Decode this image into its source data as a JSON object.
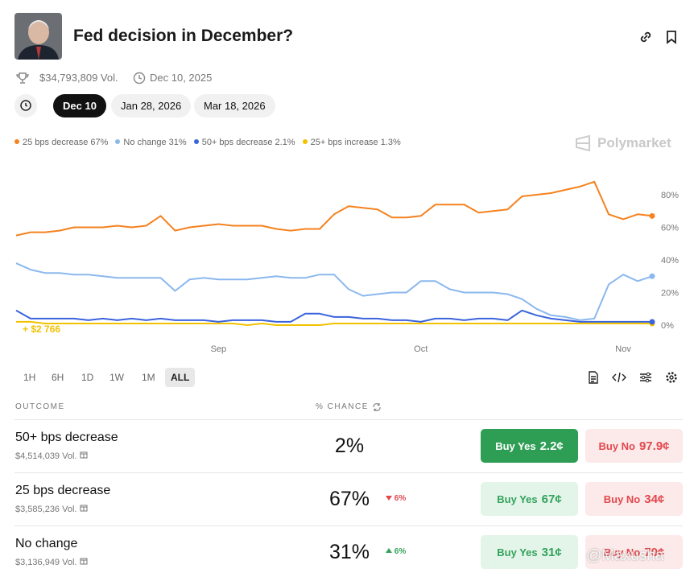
{
  "header": {
    "title": "Fed decision in December?",
    "volume": "$34,793,809 Vol.",
    "date": "Dec 10, 2025"
  },
  "tabs": [
    "Dec 10",
    "Jan 28, 2026",
    "Mar 18, 2026"
  ],
  "brand": "Polymarket",
  "chart_data": {
    "type": "line",
    "categories": [
      null,
      null,
      null,
      null,
      null,
      null,
      null,
      null,
      null,
      null,
      null,
      null,
      null,
      null,
      "Sep",
      null,
      null,
      null,
      null,
      null,
      null,
      null,
      null,
      null,
      null,
      null,
      null,
      null,
      "Oct",
      null,
      null,
      null,
      null,
      null,
      null,
      null,
      null,
      null,
      null,
      null,
      null,
      null,
      "Nov",
      null,
      null
    ],
    "series": [
      {
        "name": "25 bps decrease 67%",
        "color": "#f5821f",
        "values": [
          55,
          57,
          57,
          58,
          60,
          60,
          60,
          61,
          60,
          61,
          67,
          58,
          60,
          61,
          62,
          61,
          61,
          61,
          59,
          58,
          59,
          59,
          68,
          73,
          72,
          71,
          66,
          66,
          67,
          74,
          74,
          74,
          69,
          70,
          71,
          79,
          80,
          81,
          83,
          85,
          88,
          68,
          65,
          68,
          67
        ]
      },
      {
        "name": "No change 31%",
        "color": "#8bb8ee",
        "values": [
          38,
          34,
          32,
          32,
          31,
          31,
          30,
          29,
          29,
          29,
          29,
          21,
          28,
          29,
          28,
          28,
          28,
          29,
          30,
          29,
          29,
          31,
          31,
          22,
          18,
          19,
          20,
          20,
          27,
          27,
          22,
          20,
          20,
          20,
          19,
          16,
          10,
          6,
          5,
          3,
          4,
          25,
          31,
          27,
          30
        ]
      },
      {
        "name": "50+ bps decrease 2.1%",
        "color": "#3b63dc",
        "values": [
          9,
          4,
          4,
          4,
          4,
          3,
          4,
          3,
          4,
          3,
          4,
          3,
          3,
          3,
          2,
          3,
          3,
          3,
          2,
          2,
          7,
          7,
          5,
          5,
          4,
          4,
          3,
          3,
          2,
          4,
          4,
          3,
          4,
          4,
          3,
          9,
          6,
          4,
          3,
          2,
          2,
          2,
          2,
          2,
          2
        ]
      },
      {
        "name": "25+ bps increase 1.3%",
        "color": "#f2c200",
        "values": [
          2,
          2,
          1,
          1,
          1,
          1,
          1,
          1,
          1,
          1,
          1,
          1,
          1,
          1,
          1,
          1,
          0,
          1,
          0,
          0,
          0,
          0,
          1,
          1,
          1,
          1,
          1,
          1,
          1,
          1,
          1,
          1,
          1,
          1,
          1,
          1,
          1,
          1,
          1,
          1,
          1,
          1,
          1,
          1,
          1
        ]
      }
    ],
    "annotation": "+ $2 766",
    "ylim": [
      0,
      100
    ],
    "yticks": [
      {
        "value": 0,
        "label": "0%"
      },
      {
        "value": 20,
        "label": "20%"
      },
      {
        "value": 40,
        "label": "40%"
      },
      {
        "value": 60,
        "label": "60%"
      },
      {
        "value": 80,
        "label": "80%"
      }
    ]
  },
  "ranges": [
    "1H",
    "6H",
    "1D",
    "1W",
    "1M",
    "ALL"
  ],
  "table": {
    "headers": [
      "OUTCOME",
      "% CHANCE"
    ],
    "rows": [
      {
        "name": "50+ bps decrease",
        "volume": "$4,514,039 Vol.",
        "chance": "2%",
        "yes": "Buy Yes",
        "yes_price": "2.2¢",
        "no": "Buy No",
        "no_price": "97.9¢"
      },
      {
        "name": "25 bps decrease",
        "volume": "$3,585,236 Vol.",
        "chance": "67%",
        "change": "6%",
        "yes": "Buy Yes",
        "yes_price": "67¢",
        "no": "Buy No",
        "no_price": "34¢"
      },
      {
        "name": "No change",
        "volume": "$3,136,949 Vol.",
        "chance": "31%",
        "change": "6%",
        "yes": "Buy Yes",
        "yes_price": "31¢",
        "no": "Buy No",
        "no_price": "70¢"
      }
    ]
  },
  "watermark": "@Maxusha"
}
